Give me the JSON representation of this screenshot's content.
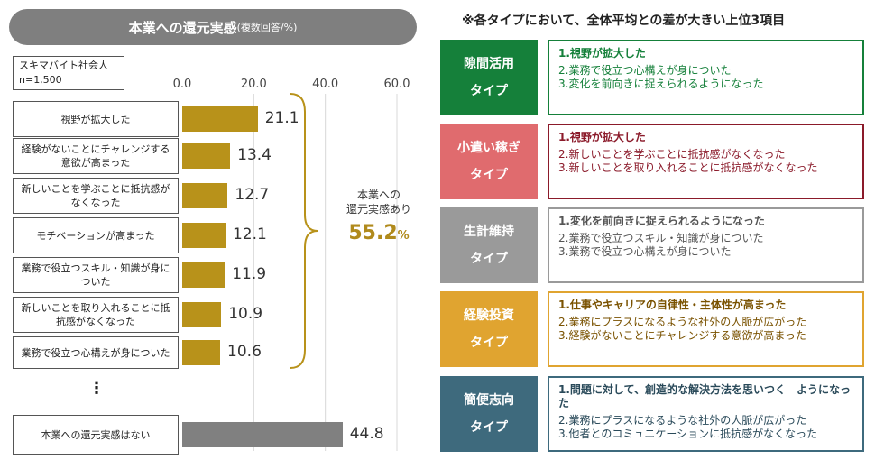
{
  "left_panel": {
    "title": "本業への還元実感",
    "title_sub": "(複数回答/%)",
    "sample_line1": "スキマバイト社会人",
    "sample_line2": "n=1,500",
    "ellipsis": "⋮",
    "summary_label_line1": "本業への",
    "summary_label_line2": "還元実感あり",
    "summary_value": "55.2",
    "summary_unit": "%"
  },
  "chart_data": {
    "type": "bar",
    "orientation": "horizontal",
    "title": "本業への還元実感(複数回答/%)",
    "xlim": [
      0,
      60
    ],
    "ticks": [
      "0.0",
      "20.0",
      "40.0",
      "60.0"
    ],
    "categories": [
      "視野が拡大した",
      "経験がないことにチャレンジする意欲が高まった",
      "新しいことを学ぶことに抵抗感がなくなった",
      "モチベーションが高まった",
      "業務で役立つスキル・知識が身についた",
      "新しいことを取り入れることに抵抗感がなくなった",
      "業務で役立つ心構えが身についた",
      "本業への還元実感はない"
    ],
    "values": [
      21.1,
      13.4,
      12.7,
      12.1,
      11.9,
      10.9,
      10.6,
      44.8
    ],
    "labels": [
      "21.1",
      "13.4",
      "12.7",
      "12.1",
      "11.9",
      "10.9",
      "10.6",
      "44.8"
    ],
    "colors": {
      "main": "#b8921a",
      "none": "#808080"
    },
    "annotation": "本業への還元実感あり 55.2%"
  },
  "right_panel": {
    "title": "※各タイプにおいて、全体平均との差が大きい上位3項目",
    "types": [
      {
        "name": "隙間活用",
        "suffix": "タイプ",
        "color": "#15803a",
        "items": [
          "1.視野が拡大した",
          "2.業務で役立つ心構えが身についた",
          "3.変化を前向きに捉えられるようになった"
        ]
      },
      {
        "name": "小遣い稼ぎ",
        "suffix": "タイプ",
        "color": "#e06b6e",
        "border": "#8b1a2a",
        "text_color": "#8b1a2a",
        "items": [
          "1.視野が拡大した",
          "2.新しいことを学ぶことに抵抗感がなくなった",
          "3.新しいことを取り入れることに抵抗感がなくなった"
        ]
      },
      {
        "name": "生計維持",
        "suffix": "タイプ",
        "color": "#9a9a9a",
        "border": "#9a9a9a",
        "text_color": "#555555",
        "items": [
          "1.変化を前向きに捉えられるようになった",
          "2.業務で役立つスキル・知識が身についた",
          "3.業務で役立つ心構えが身についた"
        ]
      },
      {
        "name": "経験投資",
        "suffix": "タイプ",
        "color": "#e0a430",
        "border": "#e0a430",
        "text_color": "#7a5200",
        "items": [
          "1.仕事やキャリアの自律性・主体性が高まった",
          "2.業務にプラスになるような社外の人脈が広がった",
          "3.経験がないことにチャレンジする意欲が高まった"
        ]
      },
      {
        "name": "簡便志向",
        "suffix": "タイプ",
        "color": "#3e6a7d",
        "border": "#3e6a7d",
        "text_color": "#2a4a5a",
        "items": [
          "1.問題に対して、創造的な解決方法を思いつく　ようになった",
          "2.業務にプラスになるような社外の人脈が広がった",
          "3.他者とのコミュニケーションに抵抗感がなくなった"
        ]
      }
    ]
  }
}
